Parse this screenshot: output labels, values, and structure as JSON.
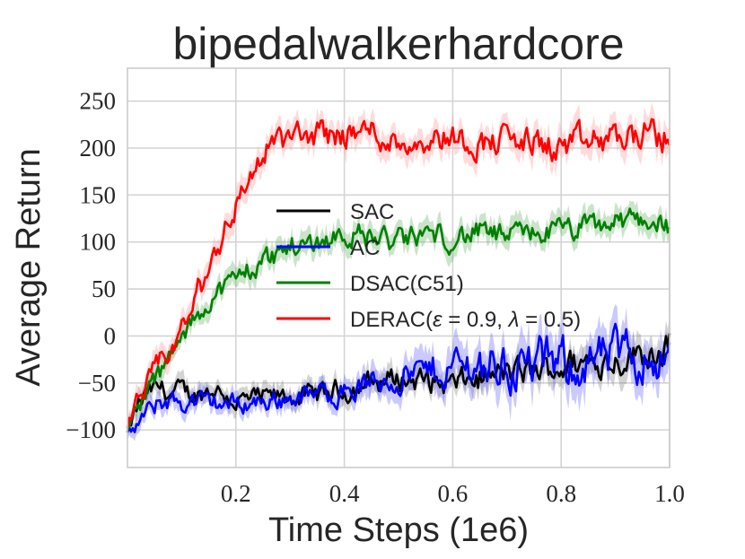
{
  "chart_data": {
    "type": "line",
    "title": "bipedalwalkerhardcore",
    "xlabel": "Time Steps (1e6)",
    "ylabel": "Average Return",
    "xlim": [
      0.0,
      1.0
    ],
    "ylim": [
      -140,
      285
    ],
    "xticks": [
      0.2,
      0.4,
      0.6,
      0.8,
      1.0
    ],
    "xtick_labels": [
      "0.2",
      "0.4",
      "0.6",
      "0.8",
      "1.0"
    ],
    "yticks": [
      -100,
      -50,
      0,
      50,
      100,
      150,
      200,
      250
    ],
    "ytick_labels": [
      "−100",
      "−50",
      "0",
      "50",
      "100",
      "150",
      "200",
      "250"
    ],
    "grid": true,
    "legend": "center",
    "series": [
      {
        "name": "SAC",
        "color": "#000000",
        "band_color": "#808080",
        "x": [
          0.0,
          0.02,
          0.04,
          0.06,
          0.08,
          0.1,
          0.12,
          0.14,
          0.16,
          0.18,
          0.2,
          0.25,
          0.3,
          0.35,
          0.4,
          0.45,
          0.5,
          0.55,
          0.6,
          0.65,
          0.7,
          0.75,
          0.8,
          0.85,
          0.9,
          0.95,
          1.0
        ],
        "y": [
          -105,
          -75,
          -60,
          -55,
          -62,
          -58,
          -63,
          -60,
          -56,
          -62,
          -70,
          -66,
          -65,
          -63,
          -58,
          -50,
          -45,
          -48,
          -52,
          -45,
          -40,
          -38,
          -32,
          -28,
          -25,
          -18,
          -10
        ],
        "band": [
          8,
          12,
          10,
          10,
          10,
          10,
          10,
          10,
          10,
          10,
          10,
          10,
          10,
          10,
          12,
          12,
          12,
          12,
          12,
          14,
          14,
          14,
          15,
          15,
          15,
          16,
          16
        ]
      },
      {
        "name": "AC",
        "color": "#0000ff",
        "band_color": "#6666ff",
        "x": [
          0.0,
          0.02,
          0.04,
          0.06,
          0.08,
          0.1,
          0.12,
          0.14,
          0.16,
          0.18,
          0.2,
          0.25,
          0.3,
          0.35,
          0.4,
          0.45,
          0.5,
          0.55,
          0.6,
          0.65,
          0.7,
          0.75,
          0.8,
          0.85,
          0.9,
          0.95,
          1.0
        ],
        "y": [
          -108,
          -92,
          -82,
          -70,
          -68,
          -72,
          -70,
          -72,
          -70,
          -73,
          -72,
          -70,
          -66,
          -62,
          -58,
          -52,
          -42,
          -40,
          -32,
          -30,
          -34,
          -30,
          -30,
          -28,
          -22,
          -20,
          -24
        ],
        "band": [
          8,
          10,
          10,
          10,
          10,
          10,
          10,
          10,
          10,
          10,
          10,
          10,
          10,
          10,
          12,
          14,
          16,
          18,
          20,
          22,
          24,
          24,
          24,
          24,
          24,
          24,
          20
        ]
      },
      {
        "name": "DSAC(C51)",
        "color": "#008000",
        "band_color": "#66b266",
        "x": [
          0.0,
          0.02,
          0.04,
          0.06,
          0.08,
          0.1,
          0.12,
          0.14,
          0.16,
          0.18,
          0.2,
          0.22,
          0.25,
          0.28,
          0.3,
          0.35,
          0.4,
          0.45,
          0.5,
          0.55,
          0.6,
          0.65,
          0.7,
          0.75,
          0.8,
          0.85,
          0.9,
          0.95,
          1.0
        ],
        "y": [
          -100,
          -75,
          -55,
          -40,
          -22,
          -5,
          15,
          30,
          45,
          52,
          60,
          70,
          80,
          88,
          95,
          100,
          110,
          105,
          100,
          108,
          105,
          110,
          105,
          110,
          112,
          115,
          120,
          125,
          118
        ],
        "band": [
          8,
          10,
          10,
          10,
          10,
          10,
          10,
          10,
          10,
          10,
          12,
          12,
          12,
          12,
          12,
          12,
          12,
          12,
          12,
          12,
          12,
          12,
          12,
          12,
          12,
          12,
          12,
          12,
          12
        ]
      },
      {
        "name": "DERAC(ε = 0.9, λ = 0.5)",
        "name_parts": [
          "DERAC(",
          "ε",
          " = 0.9, ",
          "λ",
          " = 0.5)"
        ],
        "color": "#ff0000",
        "band_color": "#ff9999",
        "x": [
          0.0,
          0.02,
          0.04,
          0.06,
          0.08,
          0.1,
          0.12,
          0.14,
          0.16,
          0.18,
          0.2,
          0.22,
          0.24,
          0.26,
          0.28,
          0.3,
          0.35,
          0.4,
          0.45,
          0.5,
          0.55,
          0.6,
          0.65,
          0.7,
          0.75,
          0.8,
          0.85,
          0.9,
          0.95,
          1.0
        ],
        "y": [
          -100,
          -70,
          -50,
          -30,
          -15,
          5,
          30,
          60,
          85,
          115,
          140,
          160,
          185,
          200,
          208,
          210,
          215,
          215,
          218,
          205,
          210,
          212,
          205,
          210,
          205,
          200,
          205,
          210,
          215,
          210
        ],
        "band": [
          8,
          10,
          12,
          12,
          12,
          12,
          14,
          14,
          14,
          14,
          14,
          14,
          14,
          14,
          14,
          14,
          14,
          14,
          14,
          14,
          14,
          14,
          14,
          14,
          16,
          16,
          16,
          16,
          16,
          16
        ]
      }
    ]
  }
}
